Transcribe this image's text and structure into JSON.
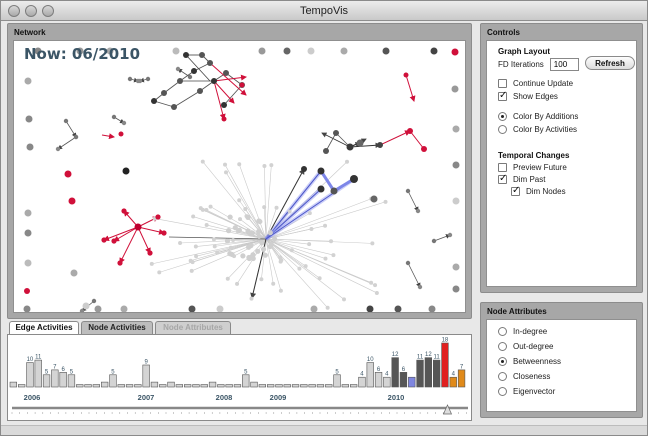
{
  "window": {
    "title": "TempoVis"
  },
  "network": {
    "title": "Network",
    "now_label": "Now: 06/2010"
  },
  "controls": {
    "title": "Controls",
    "graph_layout": "Graph Layout",
    "fd_label": "FD Iterations",
    "fd_value": "100",
    "refresh_label": "Refresh",
    "continue_update": {
      "label": "Continue Update",
      "checked": false
    },
    "show_edges": {
      "label": "Show Edges",
      "checked": true
    },
    "color_additions": {
      "label": "Color By Additions",
      "selected": true
    },
    "color_activities": {
      "label": "Color By Activities",
      "selected": false
    },
    "temporal_changes": "Temporal Changes",
    "preview_future": {
      "label": "Preview Future",
      "checked": false
    },
    "dim_past": {
      "label": "Dim Past",
      "checked": true
    },
    "dim_nodes": {
      "label": "Dim Nodes",
      "checked": true
    }
  },
  "node_attributes": {
    "title": "Node Attributes",
    "options": [
      {
        "label": "In-degree",
        "selected": false
      },
      {
        "label": "Out-degree",
        "selected": false
      },
      {
        "label": "Betweenness",
        "selected": true
      },
      {
        "label": "Closeness",
        "selected": false
      },
      {
        "label": "Eigenvector",
        "selected": false
      }
    ]
  },
  "tabs": [
    {
      "label": "Edge Activities",
      "state": "active"
    },
    {
      "label": "Node Activities",
      "state": "inactive"
    },
    {
      "label": "Node Attributes",
      "state": "disabled"
    }
  ],
  "timeline": {
    "years": [
      "2006",
      "2007",
      "2008",
      "2009",
      "2010"
    ],
    "colors": {
      "normal": "#d4d4d4",
      "dark": "#565656",
      "blue": "#7f86e0",
      "red": "#e02020",
      "orange": "#e08a1a"
    },
    "bars": [
      {
        "v": 2
      },
      {
        "v": 1
      },
      {
        "v": 10,
        "label": "10"
      },
      {
        "v": 11,
        "label": "11"
      },
      {
        "v": 5,
        "label": "5"
      },
      {
        "v": 7,
        "label": "7"
      },
      {
        "v": 6,
        "label": "6"
      },
      {
        "v": 5,
        "label": "5"
      },
      {
        "v": 1
      },
      {
        "v": 1
      },
      {
        "v": 1
      },
      {
        "v": 2
      },
      {
        "v": 5,
        "label": "5"
      },
      {
        "v": 1
      },
      {
        "v": 1
      },
      {
        "v": 1
      },
      {
        "v": 9,
        "label": "9"
      },
      {
        "v": 2
      },
      {
        "v": 1
      },
      {
        "v": 2
      },
      {
        "v": 1
      },
      {
        "v": 1
      },
      {
        "v": 1
      },
      {
        "v": 1
      },
      {
        "v": 2
      },
      {
        "v": 1
      },
      {
        "v": 1
      },
      {
        "v": 1
      },
      {
        "v": 5,
        "label": "5"
      },
      {
        "v": 2
      },
      {
        "v": 1
      },
      {
        "v": 1
      },
      {
        "v": 1
      },
      {
        "v": 1
      },
      {
        "v": 1
      },
      {
        "v": 1
      },
      {
        "v": 1
      },
      {
        "v": 1
      },
      {
        "v": 1
      },
      {
        "v": 5,
        "label": "5"
      },
      {
        "v": 1
      },
      {
        "v": 1
      },
      {
        "v": 4,
        "label": "4"
      },
      {
        "v": 10,
        "label": "10"
      },
      {
        "v": 6,
        "label": "6"
      },
      {
        "v": 4,
        "label": "4"
      },
      {
        "v": 12,
        "label": "12",
        "color": "dark"
      },
      {
        "v": 6,
        "label": "6",
        "color": "dark"
      },
      {
        "v": 4,
        "color": "blue"
      },
      {
        "v": 11,
        "label": "11",
        "color": "dark"
      },
      {
        "v": 12,
        "label": "12",
        "color": "dark"
      },
      {
        "v": 11,
        "label": "11",
        "color": "dark"
      },
      {
        "v": 18,
        "label": "18",
        "color": "red"
      },
      {
        "v": 4,
        "label": "4",
        "color": "orange"
      },
      {
        "v": 7,
        "label": "7",
        "color": "orange"
      }
    ],
    "slider_position": 0.955
  }
}
